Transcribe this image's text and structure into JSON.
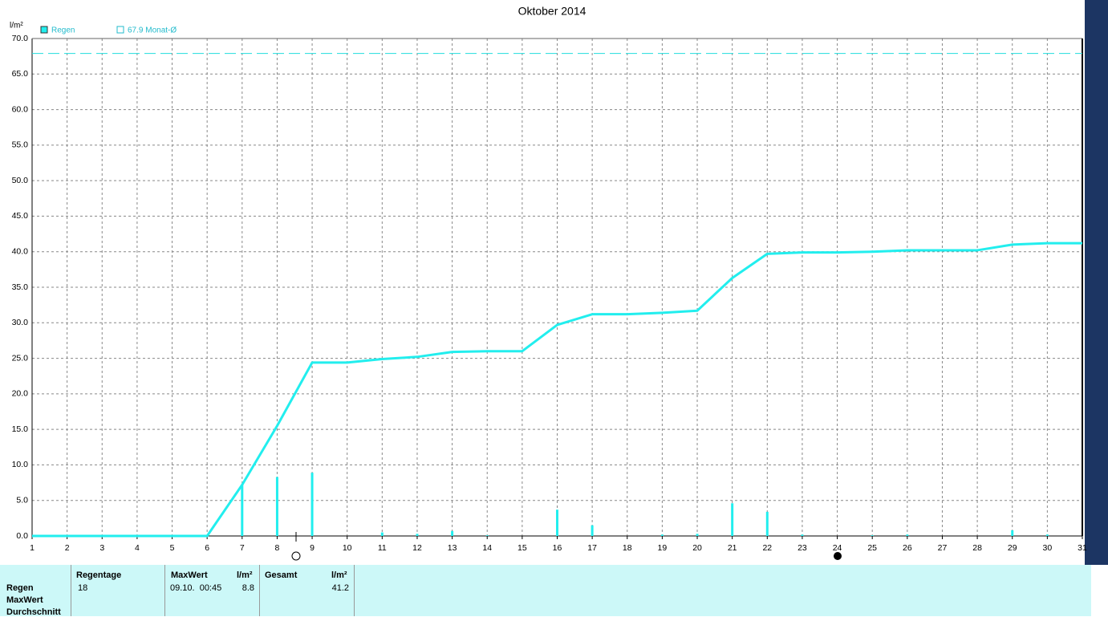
{
  "chart_data": {
    "type": "bar",
    "title": "Oktober 2014",
    "y_unit": "l/m²",
    "x": [
      1,
      2,
      3,
      4,
      5,
      6,
      7,
      8,
      9,
      10,
      11,
      12,
      13,
      14,
      15,
      16,
      17,
      18,
      19,
      20,
      21,
      22,
      23,
      24,
      25,
      26,
      27,
      28,
      29,
      30,
      31
    ],
    "series": [
      {
        "name": "Regen",
        "color": "#22eeee",
        "values": [
          0,
          0,
          0,
          0,
          0,
          0,
          7.2,
          8.3,
          8.9,
          0,
          0.5,
          0.3,
          0.7,
          0.1,
          0,
          3.7,
          1.5,
          0,
          0.2,
          0.3,
          4.6,
          3.4,
          0.2,
          0,
          0.1,
          0.2,
          0,
          0,
          0.8,
          0.2,
          0
        ]
      }
    ],
    "cumulative_values": [
      0,
      0,
      0,
      0,
      0,
      0,
      7.2,
      15.5,
      24.4,
      24.4,
      24.9,
      25.2,
      25.9,
      26.0,
      26.0,
      29.7,
      31.2,
      31.2,
      31.4,
      31.7,
      36.3,
      39.7,
      39.9,
      39.9,
      40.0,
      40.2,
      40.2,
      40.2,
      41.0,
      41.2,
      41.2
    ],
    "reference_line": {
      "value": 67.9,
      "label": "67.9 Monat-Ø"
    },
    "xlim": [
      1,
      31
    ],
    "xticks": [
      1,
      2,
      3,
      4,
      5,
      6,
      7,
      8,
      9,
      10,
      11,
      12,
      13,
      14,
      15,
      16,
      17,
      18,
      19,
      20,
      21,
      22,
      23,
      24,
      25,
      26,
      27,
      28,
      29,
      30,
      31
    ],
    "ylim": [
      0,
      70
    ],
    "yticks": [
      {
        "value": 0,
        "label": "0.0"
      },
      {
        "value": 5,
        "label": "5.0"
      },
      {
        "value": 10,
        "label": "10.0"
      },
      {
        "value": 15,
        "label": "15.0"
      },
      {
        "value": 20,
        "label": "20.0"
      },
      {
        "value": 25,
        "label": "25.0"
      },
      {
        "value": 30,
        "label": "30.0"
      },
      {
        "value": 35,
        "label": "35.0"
      },
      {
        "value": 40,
        "label": "40.0"
      },
      {
        "value": 45,
        "label": "45.0"
      },
      {
        "value": 50,
        "label": "50.0"
      },
      {
        "value": 55,
        "label": "55.0"
      },
      {
        "value": 60,
        "label": "60.0"
      },
      {
        "value": 65,
        "label": "65.0"
      },
      {
        "value": 70,
        "label": "70.0"
      }
    ],
    "grid": true
  },
  "table": {
    "row_labels": [
      "Regen",
      "MaxWert",
      "Durchschnitt"
    ],
    "headers": [
      "Regentage",
      "MaxWert",
      "l/m²",
      "Gesamt",
      "l/m²"
    ],
    "rows": [
      [
        "18",
        "09.10.  00:45",
        "8.8",
        "41.2"
      ]
    ]
  }
}
